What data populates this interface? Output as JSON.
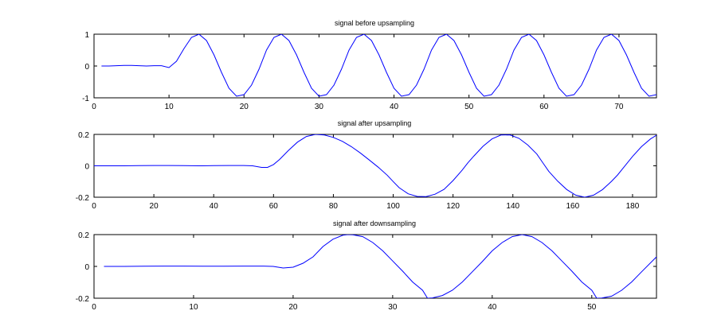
{
  "chart_data": [
    {
      "type": "line",
      "title": "signal before upsampling",
      "xlabel": "",
      "ylabel": "",
      "xlim": [
        0,
        75
      ],
      "ylim": [
        -1,
        1
      ],
      "xticks": [
        0,
        10,
        20,
        30,
        40,
        50,
        60,
        70
      ],
      "yticks": [
        -1,
        0,
        1
      ],
      "xtick_labels": [
        "0",
        "10",
        "20",
        "30",
        "40",
        "50",
        "60",
        "70"
      ],
      "ytick_labels": [
        "-1",
        "0",
        "1"
      ],
      "grid": false,
      "color": "#0000ff",
      "series": [
        {
          "x": [
            1,
            2,
            3,
            4,
            5,
            6,
            7,
            8,
            9,
            10,
            11,
            12,
            13,
            14,
            15,
            16,
            17,
            18,
            19,
            20,
            21,
            22,
            23,
            24,
            25,
            26,
            27,
            28,
            29,
            30,
            31,
            32,
            33,
            34,
            35,
            36,
            37,
            38,
            39,
            40,
            41,
            42,
            43,
            44,
            45,
            46,
            47,
            48,
            49,
            50,
            51,
            52,
            53,
            54,
            55,
            56,
            57,
            58,
            59,
            60,
            61,
            62,
            63,
            64,
            65,
            66,
            67,
            68,
            69,
            70,
            71,
            72,
            73,
            74,
            75
          ],
          "y": [
            0,
            0,
            0.01,
            0.02,
            0.02,
            0.01,
            0,
            0.01,
            0.01,
            -0.05,
            0.15,
            0.55,
            0.9,
            1,
            0.8,
            0.35,
            -0.2,
            -0.7,
            -0.95,
            -0.9,
            -0.6,
            -0.1,
            0.5,
            0.9,
            1,
            0.8,
            0.35,
            -0.2,
            -0.7,
            -0.95,
            -0.9,
            -0.6,
            -0.1,
            0.5,
            0.9,
            1,
            0.8,
            0.35,
            -0.2,
            -0.7,
            -0.95,
            -0.9,
            -0.6,
            -0.1,
            0.5,
            0.9,
            1,
            0.8,
            0.35,
            -0.2,
            -0.7,
            -0.95,
            -0.9,
            -0.6,
            -0.1,
            0.5,
            0.9,
            1,
            0.8,
            0.35,
            -0.2,
            -0.7,
            -0.95,
            -0.9,
            -0.6,
            -0.1,
            0.5,
            0.9,
            1,
            0.8,
            0.35,
            -0.2,
            -0.7,
            -0.95,
            -0.9
          ]
        }
      ]
    },
    {
      "type": "line",
      "title": "signal after upsampling",
      "xlabel": "",
      "ylabel": "",
      "xlim": [
        0,
        188
      ],
      "ylim": [
        -0.2,
        0.2
      ],
      "xticks": [
        0,
        20,
        40,
        60,
        80,
        100,
        120,
        140,
        160,
        180
      ],
      "yticks": [
        -0.2,
        0,
        0.2
      ],
      "xtick_labels": [
        "0",
        "20",
        "40",
        "60",
        "80",
        "100",
        "120",
        "140",
        "160",
        "180"
      ],
      "ytick_labels": [
        "-0.2",
        "0",
        "0.2"
      ],
      "grid": false,
      "color": "#0000ff",
      "series": [
        {
          "x": [
            0,
            5,
            10,
            15,
            20,
            25,
            30,
            35,
            40,
            45,
            50,
            53,
            56,
            58,
            60,
            62,
            65,
            68,
            71,
            74,
            75,
            77,
            80,
            83,
            86,
            89,
            92,
            95,
            98,
            100,
            102,
            105,
            108,
            111,
            114,
            117,
            120,
            123,
            125,
            127,
            130,
            133,
            136,
            139,
            142,
            145,
            148,
            150,
            152,
            155,
            158,
            161,
            164,
            167,
            170,
            173,
            175,
            177,
            180,
            183,
            186,
            188
          ],
          "y": [
            0,
            0,
            0,
            0.001,
            0.002,
            0.002,
            0.001,
            0,
            0.001,
            0.002,
            0.002,
            0,
            -0.01,
            -0.01,
            0.008,
            0.04,
            0.098,
            0.151,
            0.187,
            0.2,
            0.199,
            0.196,
            0.181,
            0.156,
            0.122,
            0.082,
            0.037,
            -0.009,
            -0.06,
            -0.1,
            -0.139,
            -0.178,
            -0.195,
            -0.196,
            -0.181,
            -0.15,
            -0.094,
            -0.029,
            0.02,
            0.063,
            0.124,
            0.171,
            0.196,
            0.197,
            0.175,
            0.132,
            0.075,
            0.02,
            -0.035,
            -0.098,
            -0.151,
            -0.187,
            -0.2,
            -0.187,
            -0.151,
            -0.098,
            -0.058,
            -0.011,
            0.06,
            0.122,
            0.171,
            0.195
          ]
        }
      ]
    },
    {
      "type": "line",
      "title": "signal after downsampling",
      "xlabel": "",
      "ylabel": "",
      "xlim": [
        0,
        56.5
      ],
      "ylim": [
        -0.2,
        0.2
      ],
      "xticks": [
        0,
        10,
        20,
        30,
        40,
        50
      ],
      "yticks": [
        -0.2,
        0,
        0.2
      ],
      "xtick_labels": [
        "0",
        "10",
        "20",
        "30",
        "40",
        "50"
      ],
      "ytick_labels": [
        "-0.2",
        "0",
        "0.2"
      ],
      "grid": false,
      "color": "#0000ff",
      "series": [
        {
          "x": [
            1,
            3,
            5,
            7,
            9,
            11,
            13,
            15,
            17,
            18,
            19,
            20,
            21,
            22,
            23,
            24,
            25,
            25.5,
            26,
            27,
            28,
            29,
            30,
            31,
            32,
            33,
            33.5,
            34,
            35,
            36,
            37,
            38,
            39,
            40,
            41,
            42,
            43,
            44,
            45,
            46,
            47,
            48,
            49,
            50,
            50.5,
            51,
            52,
            53,
            54,
            55,
            56.5
          ],
          "y": [
            0,
            0,
            0.001,
            0.002,
            0.002,
            0.001,
            0.001,
            0.002,
            0.002,
            0,
            -0.01,
            -0.005,
            0.02,
            0.06,
            0.125,
            0.171,
            0.196,
            0.2,
            0.199,
            0.187,
            0.15,
            0.098,
            0.034,
            -0.03,
            -0.098,
            -0.15,
            -0.2,
            -0.198,
            -0.183,
            -0.15,
            -0.098,
            -0.034,
            0.03,
            0.098,
            0.15,
            0.187,
            0.2,
            0.187,
            0.15,
            0.098,
            0.034,
            -0.03,
            -0.098,
            -0.15,
            -0.2,
            -0.199,
            -0.187,
            -0.15,
            -0.098,
            -0.034,
            0.06
          ]
        }
      ]
    }
  ]
}
